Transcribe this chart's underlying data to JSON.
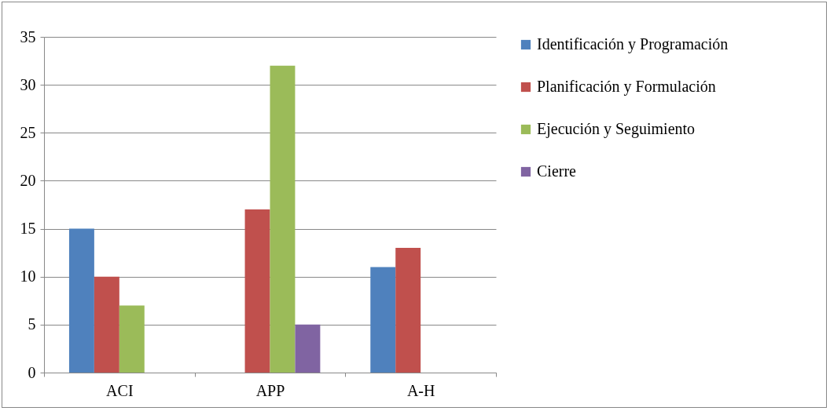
{
  "chart_data": {
    "type": "bar",
    "categories": [
      "ACI",
      "APP",
      "A-H"
    ],
    "series": [
      {
        "name": "Identificación y Programación",
        "color": "#4f81bd",
        "values": [
          15,
          null,
          11
        ]
      },
      {
        "name": "Planificación y Formulación",
        "color": "#c0504d",
        "values": [
          10,
          17,
          13
        ]
      },
      {
        "name": "Ejecución y Seguimiento",
        "color": "#9bbb59",
        "values": [
          7,
          32,
          null
        ]
      },
      {
        "name": "Cierre",
        "color": "#8064a2",
        "values": [
          null,
          5,
          null
        ]
      }
    ],
    "ylim": [
      0,
      35
    ],
    "yticks": [
      0,
      5,
      10,
      15,
      20,
      25,
      30,
      35
    ],
    "grid": "y",
    "legend": "right"
  }
}
